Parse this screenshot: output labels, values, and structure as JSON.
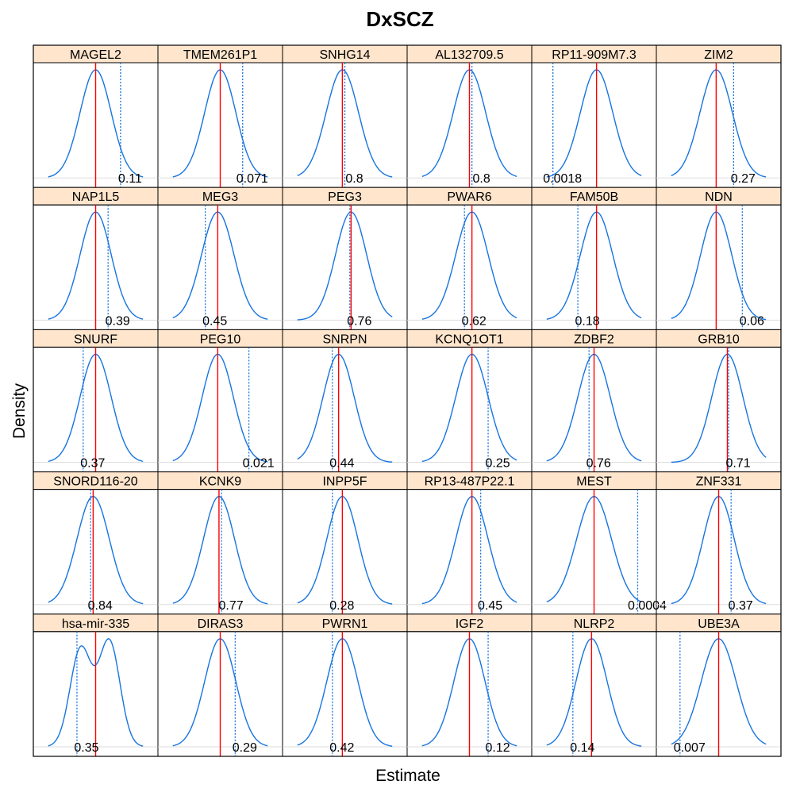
{
  "chart_data": {
    "type": "density-lattice",
    "title": "DxSCZ",
    "xlabel": "Estimate",
    "ylabel": "Density",
    "layout": {
      "columns": 6,
      "rows": 5
    },
    "colors": {
      "density": "#1874e0",
      "estimate_line": "#ff0000",
      "reference_line": "#1874e0",
      "strip_fill": "#ffe5cc",
      "baseline": "#dddddd"
    },
    "panels": [
      {
        "name": "MAGEL2",
        "value": "0.11",
        "center": 0.5,
        "spread": 0.125,
        "ref": 0.7
      },
      {
        "name": "TMEM261P1",
        "value": "0.071",
        "center": 0.5,
        "spread": 0.125,
        "ref": 0.68
      },
      {
        "name": "SNHG14",
        "value": "0.8",
        "center": 0.48,
        "spread": 0.13,
        "ref": 0.5
      },
      {
        "name": "AL132709.5",
        "value": "0.8",
        "center": 0.5,
        "spread": 0.13,
        "ref": 0.52
      },
      {
        "name": "RP11-909M7.3",
        "value": "0.0018",
        "center": 0.52,
        "spread": 0.13,
        "ref": 0.17
      },
      {
        "name": "ZIM2",
        "value": "0.27",
        "center": 0.48,
        "spread": 0.13,
        "ref": 0.62
      },
      {
        "name": "NAP1L5",
        "value": "0.39",
        "center": 0.5,
        "spread": 0.125,
        "ref": 0.6
      },
      {
        "name": "MEG3",
        "value": "0.45",
        "center": 0.48,
        "spread": 0.13,
        "ref": 0.38
      },
      {
        "name": "PEG3",
        "value": "0.76",
        "center": 0.55,
        "spread": 0.125,
        "ref": 0.54
      },
      {
        "name": "PWAR6",
        "value": "0.62",
        "center": 0.52,
        "spread": 0.13,
        "ref": 0.46
      },
      {
        "name": "FAM50B",
        "value": "0.18",
        "center": 0.52,
        "spread": 0.13,
        "ref": 0.37
      },
      {
        "name": "NDN",
        "value": "0.06",
        "center": 0.48,
        "spread": 0.125,
        "ref": 0.69
      },
      {
        "name": "SNURF",
        "value": "0.37",
        "center": 0.5,
        "spread": 0.125,
        "ref": 0.4
      },
      {
        "name": "PEG10",
        "value": "0.021",
        "center": 0.48,
        "spread": 0.125,
        "ref": 0.73
      },
      {
        "name": "SNRPN",
        "value": "0.44",
        "center": 0.45,
        "spread": 0.125,
        "ref": 0.4
      },
      {
        "name": "KCNQ1OT1",
        "value": "0.25",
        "center": 0.52,
        "spread": 0.13,
        "ref": 0.65
      },
      {
        "name": "ZDBF2",
        "value": "0.76",
        "center": 0.5,
        "spread": 0.13,
        "ref": 0.46
      },
      {
        "name": "GRB10",
        "value": "0.71",
        "center": 0.57,
        "spread": 0.125,
        "ref": 0.58
      },
      {
        "name": "SNORD116-20",
        "value": "0.84",
        "center": 0.48,
        "spread": 0.13,
        "ref": 0.46
      },
      {
        "name": "KCNK9",
        "value": "0.77",
        "center": 0.49,
        "spread": 0.125,
        "ref": 0.51
      },
      {
        "name": "INPP5F",
        "value": "0.28",
        "center": 0.48,
        "spread": 0.125,
        "ref": 0.4
      },
      {
        "name": "RP13-487P22.1",
        "value": "0.45",
        "center": 0.52,
        "spread": 0.13,
        "ref": 0.59
      },
      {
        "name": "MEST",
        "value": "0.0004",
        "center": 0.5,
        "spread": 0.14,
        "ref": 0.85
      },
      {
        "name": "ZNF331",
        "value": "0.37",
        "center": 0.5,
        "spread": 0.125,
        "ref": 0.6
      },
      {
        "name": "hsa-mir-335",
        "value": "0.35",
        "center": 0.5,
        "spread": 0.125,
        "ref": 0.35,
        "bimodal": true
      },
      {
        "name": "DIRAS3",
        "value": "0.29",
        "center": 0.5,
        "spread": 0.125,
        "ref": 0.62
      },
      {
        "name": "PWRN1",
        "value": "0.42",
        "center": 0.48,
        "spread": 0.125,
        "ref": 0.4
      },
      {
        "name": "IGF2",
        "value": "0.12",
        "center": 0.5,
        "spread": 0.125,
        "ref": 0.65
      },
      {
        "name": "NLRP2",
        "value": "0.14",
        "center": 0.48,
        "spread": 0.125,
        "ref": 0.33
      },
      {
        "name": "UBE3A",
        "value": "0.007",
        "center": 0.5,
        "spread": 0.14,
        "ref": 0.19
      }
    ]
  }
}
